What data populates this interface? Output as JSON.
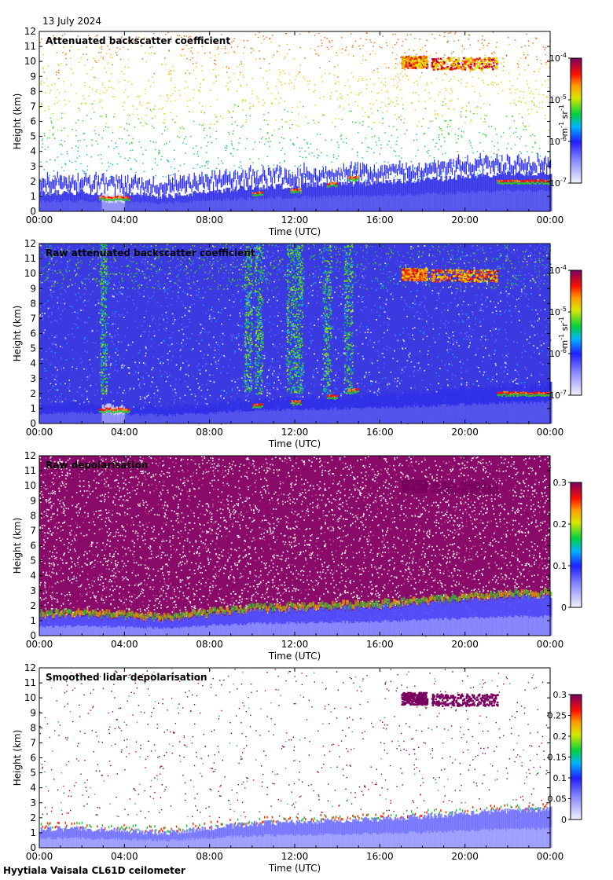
{
  "date": "13 July 2024",
  "footer": "Hyytiala Vaisala CL61D ceilometer",
  "chart_data": [
    {
      "type": "heatmap",
      "title": "Attenuated backscatter coefficient",
      "xlabel": "Time (UTC)",
      "ylabel": "Height (km)",
      "xticks": [
        "00:00",
        "04:00",
        "08:00",
        "12:00",
        "16:00",
        "20:00",
        "00:00"
      ],
      "yticks": [
        "0",
        "1",
        "2",
        "3",
        "4",
        "5",
        "6",
        "7",
        "8",
        "9",
        "10",
        "11",
        "12"
      ],
      "ylim": [
        0,
        12
      ],
      "xlim_hours": [
        0,
        24
      ],
      "colorbar": {
        "scale": "log",
        "ticks": [
          "10",
          "10",
          "10",
          "10"
        ],
        "tick_exponents": [
          "-7",
          "-6",
          "-5",
          "-4"
        ],
        "unit_base": "m",
        "unit_exp1": "-1",
        "unit_mid": " sr",
        "unit_exp2": "-1"
      },
      "style": "sparse",
      "boundary_layer_top_km": [
        1.2,
        1.3,
        1.1,
        1.0,
        1.3,
        1.6,
        1.7,
        1.8,
        1.9,
        2.1,
        2.3,
        2.5,
        2.6
      ],
      "cloud_base_layers": [
        {
          "start_h": 2.8,
          "end_h": 4.2,
          "height_km": 1.0
        },
        {
          "start_h": 10.0,
          "end_h": 10.5,
          "height_km": 1.3
        },
        {
          "start_h": 11.8,
          "end_h": 12.3,
          "height_km": 1.5
        },
        {
          "start_h": 13.5,
          "end_h": 14.0,
          "height_km": 1.9
        },
        {
          "start_h": 14.5,
          "end_h": 15.0,
          "height_km": 2.3
        },
        {
          "start_h": 21.5,
          "end_h": 24.0,
          "height_km": 2.1
        }
      ],
      "cirrus": [
        {
          "start_h": 17.0,
          "end_h": 18.2,
          "bottom_km": 9.6,
          "top_km": 10.4
        },
        {
          "start_h": 18.4,
          "end_h": 21.5,
          "bottom_km": 9.5,
          "top_km": 10.3
        }
      ]
    },
    {
      "type": "heatmap",
      "title": "Raw attenuated backscatter coefficient",
      "xlabel": "Time (UTC)",
      "ylabel": "Height (km)",
      "xticks": [
        "00:00",
        "04:00",
        "08:00",
        "12:00",
        "16:00",
        "20:00",
        "00:00"
      ],
      "yticks": [
        "0",
        "1",
        "2",
        "3",
        "4",
        "5",
        "6",
        "7",
        "8",
        "9",
        "10",
        "11",
        "12"
      ],
      "ylim": [
        0,
        12
      ],
      "xlim_hours": [
        0,
        24
      ],
      "colorbar": {
        "scale": "log",
        "ticks": [
          "10",
          "10",
          "10",
          "10"
        ],
        "tick_exponents": [
          "-7",
          "-6",
          "-5",
          "-4"
        ],
        "unit_base": "m",
        "unit_exp1": "-1",
        "unit_mid": " sr",
        "unit_exp2": "-1"
      },
      "style": "noisy",
      "noise_columns_h": [
        3.0,
        9.8,
        10.3,
        11.8,
        12.2,
        13.5,
        14.5
      ],
      "boundary_layer_top_km": [
        1.2,
        1.3,
        1.1,
        1.0,
        1.3,
        1.6,
        1.7,
        1.8,
        1.9,
        2.1,
        2.3,
        2.5,
        2.6
      ],
      "cloud_base_layers": [
        {
          "start_h": 2.8,
          "end_h": 4.2,
          "height_km": 1.0
        },
        {
          "start_h": 10.0,
          "end_h": 10.5,
          "height_km": 1.3
        },
        {
          "start_h": 11.8,
          "end_h": 12.3,
          "height_km": 1.5
        },
        {
          "start_h": 13.5,
          "end_h": 14.0,
          "height_km": 1.9
        },
        {
          "start_h": 14.5,
          "end_h": 15.0,
          "height_km": 2.3
        },
        {
          "start_h": 21.5,
          "end_h": 24.0,
          "height_km": 2.1
        }
      ],
      "cirrus": [
        {
          "start_h": 17.0,
          "end_h": 18.2,
          "bottom_km": 9.6,
          "top_km": 10.4
        },
        {
          "start_h": 18.4,
          "end_h": 21.5,
          "bottom_km": 9.5,
          "top_km": 10.3
        }
      ]
    },
    {
      "type": "heatmap",
      "title": "Raw depolarisation",
      "xlabel": "Time (UTC)",
      "ylabel": "Height (km)",
      "xticks": [
        "00:00",
        "04:00",
        "08:00",
        "12:00",
        "16:00",
        "20:00",
        "00:00"
      ],
      "yticks": [
        "0",
        "1",
        "2",
        "3",
        "4",
        "5",
        "6",
        "7",
        "8",
        "9",
        "10",
        "11",
        "12"
      ],
      "ylim": [
        0,
        12
      ],
      "xlim_hours": [
        0,
        24
      ],
      "colorbar": {
        "scale": "linear",
        "range": [
          0,
          0.3
        ],
        "ticks": [
          "0",
          "0.1",
          "0.2",
          "0.3"
        ]
      },
      "style": "depol_noise",
      "boundary_layer_top_km": [
        1.2,
        1.3,
        1.1,
        1.0,
        1.3,
        1.6,
        1.7,
        1.8,
        1.9,
        2.1,
        2.3,
        2.5,
        2.6
      ],
      "cloud_base_layers": [],
      "cirrus": [
        {
          "start_h": 17.0,
          "end_h": 18.2,
          "bottom_km": 9.6,
          "top_km": 10.4
        },
        {
          "start_h": 18.4,
          "end_h": 21.5,
          "bottom_km": 9.5,
          "top_km": 10.3
        }
      ]
    },
    {
      "type": "heatmap",
      "title": "Smoothed lidar depolarisation",
      "xlabel": "Time (UTC)",
      "ylabel": "Height (km)",
      "xticks": [
        "00:00",
        "04:00",
        "08:00",
        "12:00",
        "16:00",
        "20:00",
        "00:00"
      ],
      "yticks": [
        "0",
        "1",
        "2",
        "3",
        "4",
        "5",
        "6",
        "7",
        "8",
        "9",
        "10",
        "11",
        "12"
      ],
      "ylim": [
        0,
        12
      ],
      "xlim_hours": [
        0,
        24
      ],
      "colorbar": {
        "scale": "linear",
        "range": [
          0,
          0.3
        ],
        "ticks": [
          "0",
          "0.05",
          "0.1",
          "0.15",
          "0.2",
          "0.25",
          "0.3"
        ]
      },
      "style": "depol_smooth",
      "boundary_layer_top_km": [
        1.2,
        1.3,
        1.1,
        1.0,
        1.3,
        1.6,
        1.7,
        1.8,
        1.9,
        2.1,
        2.3,
        2.5,
        2.6
      ],
      "cloud_base_layers": [],
      "cirrus": [
        {
          "start_h": 17.0,
          "end_h": 18.2,
          "bottom_km": 9.6,
          "top_km": 10.4
        },
        {
          "start_h": 18.4,
          "end_h": 21.5,
          "bottom_km": 9.5,
          "top_km": 10.3
        }
      ]
    }
  ]
}
